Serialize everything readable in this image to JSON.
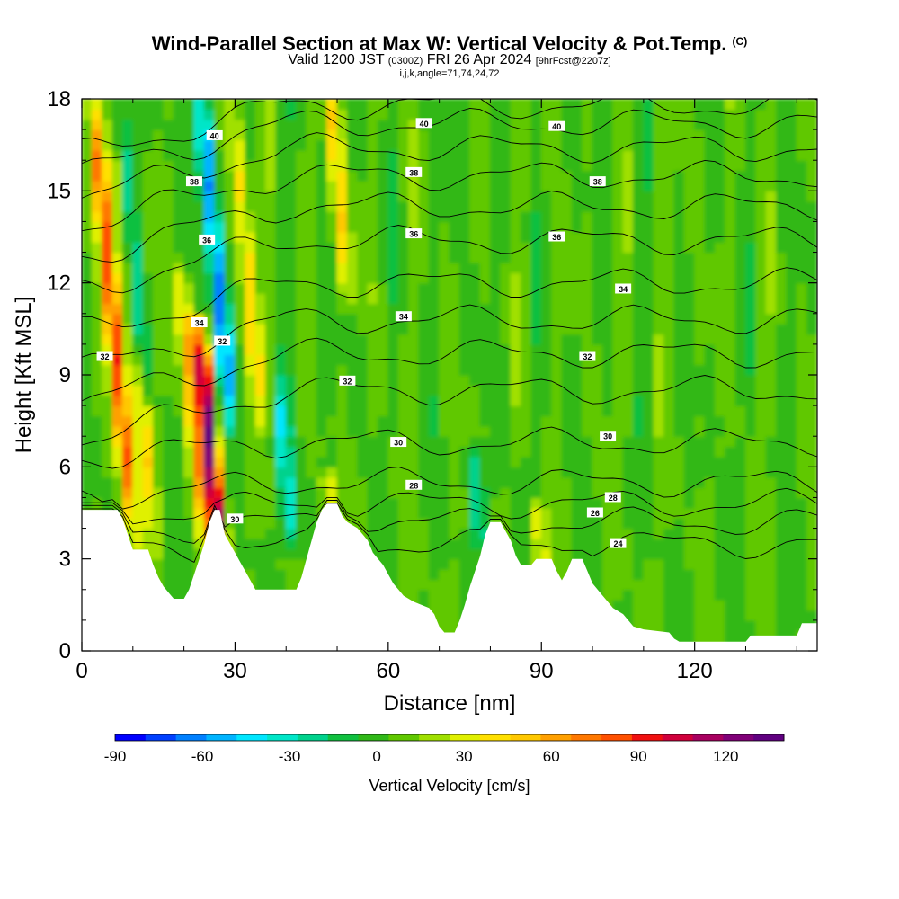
{
  "header": {
    "title": "Wind-Parallel Section at Max W: Vertical Velocity & Pot.Temp.",
    "title_mark": "(C)",
    "valid_main": "Valid 1200 JST",
    "valid_utc": "(0300Z)",
    "valid_date": "FRI 26 Apr 2024",
    "forecast": "[9hrFcst@2207z]",
    "indices": "i,j,k,angle=71,74,24,72"
  },
  "chart_data": {
    "type": "heatmap",
    "xlabel": "Distance [nm]",
    "ylabel": "Height [Kft MSL]",
    "xlim": [
      0,
      144
    ],
    "ylim": [
      0,
      18
    ],
    "x_ticks": [
      "0",
      "30",
      "60",
      "90",
      "120"
    ],
    "y_ticks": [
      "0",
      "3",
      "6",
      "9",
      "12",
      "15",
      "18"
    ],
    "colorbar": {
      "label": "Vertical Velocity [cm/s]",
      "tick_labels": [
        "-90",
        "-60",
        "-30",
        "0",
        "30",
        "60",
        "90",
        "120"
      ],
      "min": -90,
      "max": 140,
      "colors": [
        "#0000ff",
        "#0040ff",
        "#0080ff",
        "#00b4ff",
        "#00e6ff",
        "#00e6c8",
        "#00d28c",
        "#10c040",
        "#30b818",
        "#60c800",
        "#a0e000",
        "#e0f000",
        "#ffe000",
        "#ffc800",
        "#ffa000",
        "#ff7800",
        "#ff5000",
        "#f01010",
        "#d0003c",
        "#a80060",
        "#800078",
        "#600080"
      ]
    },
    "theta_contour_labels": [
      {
        "value": "24",
        "x": 105,
        "y": 3.5
      },
      {
        "value": "26",
        "x": 100.5,
        "y": 4.5
      },
      {
        "value": "28",
        "x": 65,
        "y": 5.4
      },
      {
        "value": "28",
        "x": 104,
        "y": 5
      },
      {
        "value": "30",
        "x": 30,
        "y": 4.3
      },
      {
        "value": "30",
        "x": 62,
        "y": 6.8
      },
      {
        "value": "30",
        "x": 103,
        "y": 7
      },
      {
        "value": "32",
        "x": 4.5,
        "y": 9.6
      },
      {
        "value": "32",
        "x": 27.5,
        "y": 10.1
      },
      {
        "value": "32",
        "x": 52,
        "y": 8.8
      },
      {
        "value": "32",
        "x": 99,
        "y": 9.6
      },
      {
        "value": "34",
        "x": 23,
        "y": 10.7
      },
      {
        "value": "34",
        "x": 63,
        "y": 10.9
      },
      {
        "value": "34",
        "x": 106,
        "y": 11.8
      },
      {
        "value": "36",
        "x": 24.5,
        "y": 13.4
      },
      {
        "value": "36",
        "x": 65,
        "y": 13.6
      },
      {
        "value": "36",
        "x": 93,
        "y": 13.5
      },
      {
        "value": "38",
        "x": 22,
        "y": 15.3
      },
      {
        "value": "38",
        "x": 65,
        "y": 15.6
      },
      {
        "value": "38",
        "x": 101,
        "y": 15.3
      },
      {
        "value": "40",
        "x": 26,
        "y": 16.8
      },
      {
        "value": "40",
        "x": 67,
        "y": 17.2
      },
      {
        "value": "40",
        "x": 93,
        "y": 17.1
      }
    ],
    "updraft_bands": [
      {
        "x": 10,
        "peak": 80,
        "ytop": 18,
        "ybot": 4
      },
      {
        "x": 14,
        "peak": 40,
        "ytop": 18,
        "ybot": 4
      },
      {
        "x": 24,
        "peak": 50,
        "ytop": 12,
        "ybot": 4
      },
      {
        "x": 27,
        "peak": 120,
        "ytop": 10,
        "ybot": 3.5
      },
      {
        "x": 35,
        "peak": 40,
        "ytop": 18,
        "ybot": 8
      },
      {
        "x": 52,
        "peak": 40,
        "ytop": 18,
        "ybot": 12
      },
      {
        "x": 49,
        "peak": 30,
        "ytop": 5,
        "ybot": 4.5
      },
      {
        "x": 90,
        "peak": 30,
        "ytop": 4,
        "ybot": 3
      }
    ],
    "downdraft_bands": [
      {
        "x": 12,
        "peak": -50,
        "ytop": 18,
        "ybot": 9
      },
      {
        "x": 29,
        "peak": -70,
        "ytop": 18,
        "ybot": 8
      },
      {
        "x": 41,
        "peak": -40,
        "ytop": 8,
        "ybot": 4
      },
      {
        "x": 78,
        "peak": -30,
        "ytop": 6,
        "ybot": 4
      }
    ],
    "terrain_height": [
      [
        0,
        4.6
      ],
      [
        7,
        4.6
      ],
      [
        8,
        4.3
      ],
      [
        9,
        3.8
      ],
      [
        10,
        3.3
      ],
      [
        13,
        3.3
      ],
      [
        14,
        2.8
      ],
      [
        15,
        2.4
      ],
      [
        16,
        2.1
      ],
      [
        17,
        1.9
      ],
      [
        18,
        1.7
      ],
      [
        20,
        1.7
      ],
      [
        21,
        2.0
      ],
      [
        22,
        2.5
      ],
      [
        23,
        3.0
      ],
      [
        24,
        3.5
      ],
      [
        25,
        4.2
      ],
      [
        26,
        4.6
      ],
      [
        27,
        4.6
      ],
      [
        28,
        3.8
      ],
      [
        29,
        3.5
      ],
      [
        30,
        3.2
      ],
      [
        31,
        2.9
      ],
      [
        32,
        2.6
      ],
      [
        33,
        2.3
      ],
      [
        34,
        2.0
      ],
      [
        38,
        2.0
      ],
      [
        42,
        2.0
      ],
      [
        43,
        2.4
      ],
      [
        44,
        3.0
      ],
      [
        45,
        3.6
      ],
      [
        46,
        4.2
      ],
      [
        47,
        4.6
      ],
      [
        48,
        4.8
      ],
      [
        50,
        4.8
      ],
      [
        51,
        4.4
      ],
      [
        52,
        4.2
      ],
      [
        54,
        4.0
      ],
      [
        55,
        3.8
      ],
      [
        56,
        3.6
      ],
      [
        57,
        3.2
      ],
      [
        59,
        2.8
      ],
      [
        60,
        2.5
      ],
      [
        61,
        2.2
      ],
      [
        62,
        2.0
      ],
      [
        63,
        1.8
      ],
      [
        65,
        1.6
      ],
      [
        68,
        1.4
      ],
      [
        69,
        1.2
      ],
      [
        70,
        0.8
      ],
      [
        71,
        0.6
      ],
      [
        73,
        0.6
      ],
      [
        74,
        1.0
      ],
      [
        75,
        1.5
      ],
      [
        76,
        2.1
      ],
      [
        77,
        2.6
      ],
      [
        78,
        3.1
      ],
      [
        79,
        3.8
      ],
      [
        80,
        4.2
      ],
      [
        82,
        4.2
      ],
      [
        83,
        3.9
      ],
      [
        84,
        3.6
      ],
      [
        85,
        3.1
      ],
      [
        86,
        2.8
      ],
      [
        88,
        2.8
      ],
      [
        89,
        3.0
      ],
      [
        92,
        3.0
      ],
      [
        93,
        2.6
      ],
      [
        94,
        2.3
      ],
      [
        95,
        2.6
      ],
      [
        96,
        3.0
      ],
      [
        98,
        3.0
      ],
      [
        99,
        2.6
      ],
      [
        100,
        2.2
      ],
      [
        101,
        2.0
      ],
      [
        102,
        1.8
      ],
      [
        103,
        1.6
      ],
      [
        104,
        1.4
      ],
      [
        105,
        1.3
      ],
      [
        106,
        1.2
      ],
      [
        107,
        1.0
      ],
      [
        108,
        0.8
      ],
      [
        110,
        0.7
      ],
      [
        115,
        0.6
      ],
      [
        116,
        0.4
      ],
      [
        117,
        0.3
      ],
      [
        130,
        0.3
      ],
      [
        131,
        0.5
      ],
      [
        140,
        0.5
      ],
      [
        141,
        0.9
      ],
      [
        144,
        0.9
      ]
    ]
  }
}
